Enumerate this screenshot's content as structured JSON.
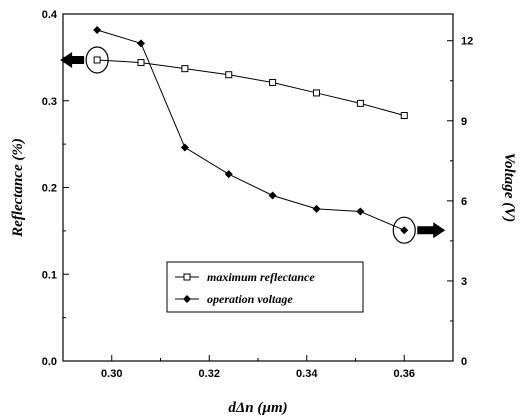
{
  "chart_data": {
    "type": "line",
    "xlabel": "dΔn (µm)",
    "ylabel_left": "Reflectance (%)",
    "ylabel_right": "Voltage (V)",
    "xlim": [
      0.29,
      0.37
    ],
    "ylim_left": [
      0.0,
      0.4
    ],
    "ylim_right": [
      0,
      13
    ],
    "x_ticks": [
      "0.30",
      "0.32",
      "0.34",
      "0.36"
    ],
    "y_left_ticks": [
      "0.0",
      "0.1",
      "0.2",
      "0.3",
      "0.4"
    ],
    "y_right_ticks": [
      "0",
      "3",
      "6",
      "9",
      "12"
    ],
    "grid": false,
    "legend_position": "lower-center",
    "series": [
      {
        "name": "maximum reflectance",
        "axis": "left",
        "marker": "open-square",
        "color": "#000000",
        "x": [
          0.297,
          0.306,
          0.315,
          0.324,
          0.333,
          0.342,
          0.351,
          0.36
        ],
        "y": [
          0.347,
          0.344,
          0.337,
          0.33,
          0.321,
          0.309,
          0.297,
          0.283
        ]
      },
      {
        "name": "operation voltage",
        "axis": "right",
        "marker": "filled-diamond",
        "color": "#000000",
        "x": [
          0.297,
          0.306,
          0.315,
          0.324,
          0.333,
          0.342,
          0.351,
          0.36
        ],
        "y": [
          12.4,
          11.9,
          8.0,
          7.0,
          6.2,
          5.7,
          5.6,
          4.9
        ]
      }
    ],
    "annotations": [
      {
        "type": "circle",
        "around_series": "maximum reflectance",
        "point_index": 0,
        "arrow": "left"
      },
      {
        "type": "circle",
        "around_series": "operation voltage",
        "point_index": 7,
        "arrow": "right"
      }
    ]
  }
}
